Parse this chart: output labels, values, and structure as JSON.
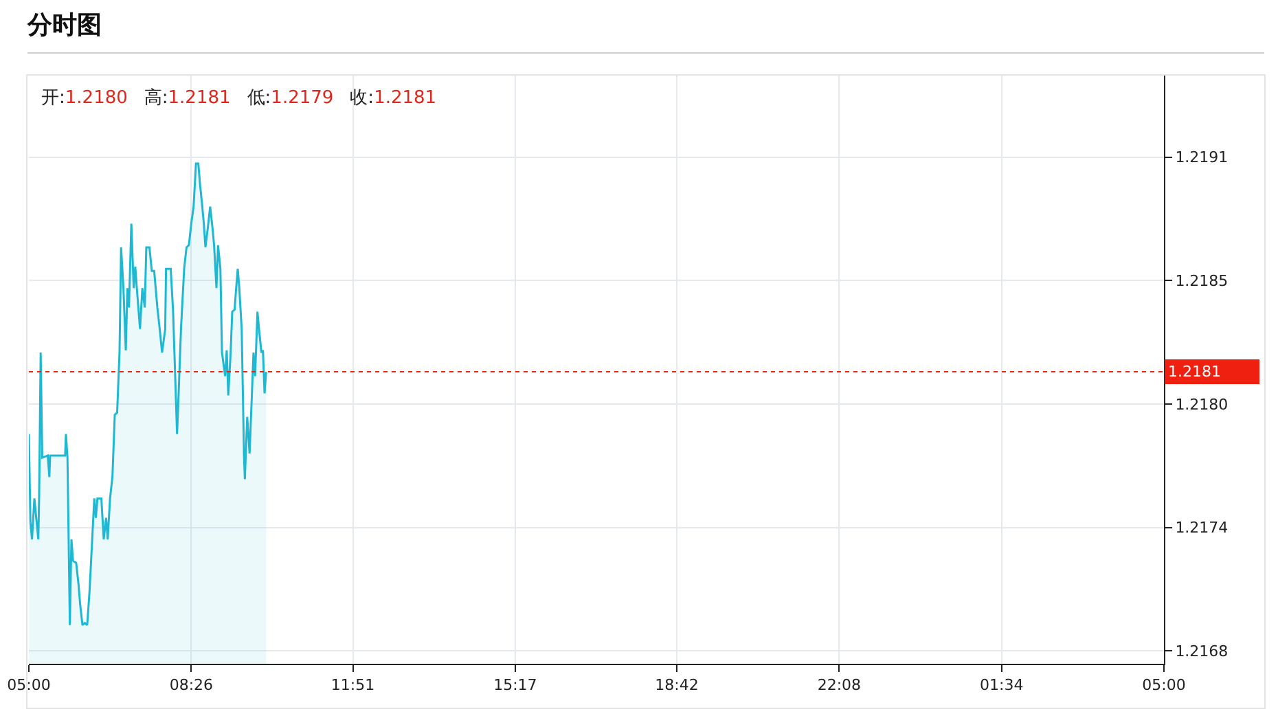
{
  "chart_data": {
    "type": "area",
    "title": "分时图",
    "annotations": [
      "开:1.2180",
      "高:1.2181",
      "低:1.2179",
      "收:1.2181"
    ],
    "x": [
      "--01-01T05:00",
      "--01-01T05:02",
      "--01-01T05:04",
      "--01-01T05:07",
      "--01-01T05:12",
      "--01-01T05:13",
      "--01-01T05:15",
      "--01-01T05:17",
      "--01-01T05:24",
      "--01-01T05:26",
      "--01-01T05:27",
      "--01-01T05:46",
      "--01-01T05:47",
      "--01-01T05:49",
      "--01-01T05:52",
      "--01-01T05:54",
      "--01-01T05:56",
      "--01-01T06:00",
      "--01-01T06:03",
      "--01-01T06:05",
      "--01-01T06:08",
      "--01-01T06:11",
      "--01-01T06:14",
      "--01-01T06:17",
      "--01-01T06:23",
      "--01-01T06:25",
      "--01-01T06:27",
      "--01-01T06:32",
      "--01-01T06:35",
      "--01-01T06:38",
      "--01-01T06:40",
      "--01-01T06:43",
      "--01-01T06:46",
      "--01-01T06:49",
      "--01-01T06:52",
      "--01-01T06:55",
      "--01-01T06:57",
      "--01-01T07:00",
      "--01-01T07:03",
      "--01-01T07:05",
      "--01-01T07:07",
      "--01-01T07:10",
      "--01-01T07:13",
      "--01-01T07:15",
      "--01-01T07:17",
      "--01-01T07:21",
      "--01-01T07:24",
      "--01-01T07:27",
      "--01-01T07:29",
      "--01-01T07:33",
      "--01-01T07:36",
      "--01-01T07:39",
      "--01-01T07:43",
      "--01-01T07:46",
      "--01-01T07:49",
      "--01-01T07:53",
      "--01-01T07:54",
      "--01-01T08:00",
      "--01-01T08:03",
      "--01-01T08:08",
      "--01-01T08:10",
      "--01-01T08:13",
      "--01-01T08:17",
      "--01-01T08:20",
      "--01-01T08:23",
      "--01-01T08:26",
      "--01-01T08:29",
      "--01-01T08:32",
      "--01-01T08:35",
      "--01-01T08:37",
      "--01-01T08:40",
      "--01-01T08:42",
      "--01-01T08:44",
      "--01-01T08:47",
      "--01-01T08:50",
      "--01-01T08:53",
      "--01-01T08:55",
      "--01-01T08:58",
      "--01-01T09:00",
      "--01-01T09:03",
      "--01-01T09:05",
      "--01-01T09:09",
      "--01-01T09:11",
      "--01-01T09:13",
      "--01-01T09:16",
      "--01-01T09:18",
      "--01-01T09:21",
      "--01-01T09:23",
      "--01-01T09:25",
      "--01-01T09:27",
      "--01-01T09:30",
      "--01-01T09:33",
      "--01-01T09:34",
      "--01-01T09:37",
      "--01-01T09:40",
      "--01-01T09:43",
      "--01-01T09:45",
      "--01-01T09:47",
      "--01-01T09:50",
      "--01-01T09:52",
      "--01-01T09:55",
      "--01-01T09:57",
      "--01-01T09:59",
      "--01-01T10:01"
    ],
    "series": [
      {
        "color": "#1fb8d2",
        "values": [
          1.21781,
          1.2174,
          1.21732,
          1.21751,
          1.21732,
          1.21751,
          1.21819,
          1.2177,
          1.21771,
          1.21761,
          1.21771,
          1.21771,
          1.21781,
          1.2177,
          1.21692,
          1.21732,
          1.21722,
          1.21721,
          1.21711,
          1.21702,
          1.21692,
          1.21693,
          1.21692,
          1.21708,
          1.21751,
          1.21742,
          1.21751,
          1.21751,
          1.21732,
          1.21742,
          1.21732,
          1.21751,
          1.21761,
          1.2179,
          1.21791,
          1.21819,
          1.21868,
          1.21849,
          1.2182,
          1.21849,
          1.2184,
          1.21879,
          1.21849,
          1.21859,
          1.21849,
          1.2183,
          1.21849,
          1.2184,
          1.21868,
          1.21868,
          1.21857,
          1.21857,
          1.2184,
          1.2183,
          1.21819,
          1.2183,
          1.21858,
          1.21858,
          1.21838,
          1.21781,
          1.218,
          1.2183,
          1.21858,
          1.21868,
          1.21869,
          1.21879,
          1.21887,
          1.21907,
          1.21907,
          1.21898,
          1.21887,
          1.21879,
          1.21868,
          1.21877,
          1.21887,
          1.21877,
          1.21869,
          1.21849,
          1.21869,
          1.21858,
          1.21819,
          1.21808,
          1.2182,
          1.21799,
          1.21819,
          1.21838,
          1.21839,
          1.21849,
          1.21858,
          1.21849,
          1.2183,
          1.2177,
          1.2176,
          1.21789,
          1.21772,
          1.218,
          1.21819,
          1.21808,
          1.21838,
          1.2183,
          1.21819,
          1.2182,
          1.218,
          1.2181
        ]
      }
    ],
    "xlim": [
      "--01-01T05:00",
      "--01-02T05:00"
    ],
    "xticks": [
      {
        "value": "--01-01T05:00",
        "label": "05:00"
      },
      {
        "value": "--01-01T08:26",
        "label": "08:26"
      },
      {
        "value": "--01-01T11:51",
        "label": "11:51"
      },
      {
        "value": "--01-01T15:17",
        "label": "15:17"
      },
      {
        "value": "--01-01T18:42",
        "label": "18:42"
      },
      {
        "value": "--01-01T22:08",
        "label": "22:08"
      },
      {
        "value": "--01-02T01:34",
        "label": "01:34"
      },
      {
        "value": "--01-02T05:00",
        "label": "05:00"
      }
    ],
    "ylim": [
      1.21674,
      1.21948
    ],
    "yticks": [
      {
        "value": 1.2168,
        "label": "1.2168"
      },
      {
        "value": 1.217375,
        "label": "1.2174"
      },
      {
        "value": 1.21795,
        "label": "1.2180"
      },
      {
        "value": 1.218525,
        "label": "1.2185"
      },
      {
        "value": 1.2191,
        "label": "1.2191"
      }
    ],
    "ref_lines": [
      {
        "axis": "y",
        "value": 1.2181,
        "label": "1.2181",
        "color": "#f02010",
        "line_style": "dotted"
      }
    ],
    "grid": true,
    "marker": "none",
    "line_style": "solid"
  }
}
